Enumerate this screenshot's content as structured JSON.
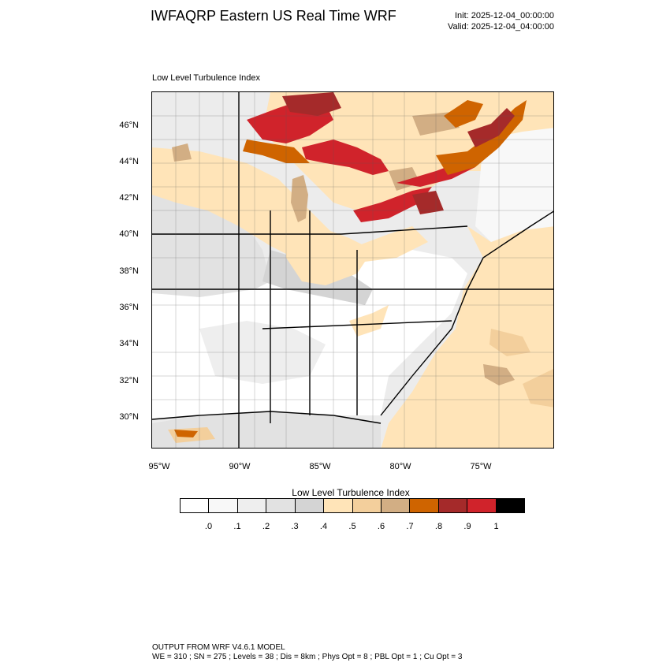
{
  "header": {
    "title": "IWFAQRP Eastern US Real Time WRF",
    "init": "Init: 2025-12-04_00:00:00",
    "valid": "Valid: 2025-12-04_04:00:00"
  },
  "map": {
    "field_label": "Low Level Turbulence Index",
    "lat_labels": [
      "46°N",
      "44°N",
      "42°N",
      "40°N",
      "38°N",
      "36°N",
      "34°N",
      "32°N",
      "30°N"
    ],
    "lon_labels": [
      "95°W",
      "90°W",
      "85°W",
      "80°W",
      "75°W"
    ]
  },
  "colorbar": {
    "title": "Low Level Turbulence Index",
    "colors": [
      "#ffffff",
      "#f8f8f8",
      "#eeeeee",
      "#e2e2e2",
      "#d4d4d4",
      "#ffe4b8",
      "#f3cf9c",
      "#d2ae84",
      "#cf6400",
      "#a52a2a",
      "#d0232b",
      "#000000"
    ],
    "tick_labels": [
      ".0",
      ".1",
      ".2",
      ".3",
      ".4",
      ".5",
      ".6",
      ".7",
      ".8",
      ".9",
      "1"
    ]
  },
  "footer": {
    "line1": "OUTPUT FROM WRF V4.6.1 MODEL",
    "line2": "WE = 310 ; SN = 275 ; Levels = 38 ; Dis = 8km ; Phys Opt = 8 ; PBL Opt = 1 ; Cu Opt = 3"
  }
}
